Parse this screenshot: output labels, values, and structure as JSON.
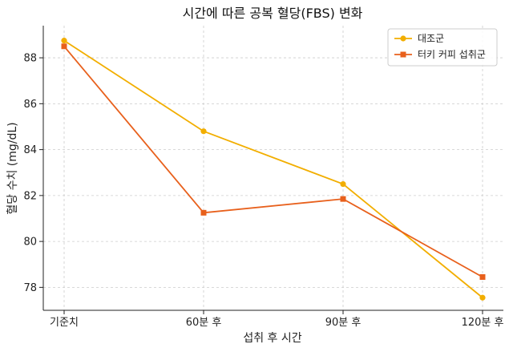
{
  "chart_data": {
    "type": "line",
    "title": "시간에 따른 공복 혈당(FBS) 변화",
    "xlabel": "섭취 후 시간",
    "ylabel": "혈당 수치 (mg/dL)",
    "categories": [
      "기준치",
      "60분 후",
      "90분 후",
      "120분 후"
    ],
    "ylim": [
      77.0,
      89.4
    ],
    "yticks": [
      78,
      80,
      82,
      84,
      86,
      88
    ],
    "grid": true,
    "legend": "top-right",
    "series": [
      {
        "name": "대조군",
        "values": [
          88.75,
          84.8,
          82.5,
          77.55
        ],
        "color": "#F2AE00",
        "marker": "circle"
      },
      {
        "name": "터키 커피 섭취군",
        "values": [
          88.5,
          81.25,
          81.85,
          78.45
        ],
        "color": "#E8601C",
        "marker": "square"
      }
    ]
  }
}
